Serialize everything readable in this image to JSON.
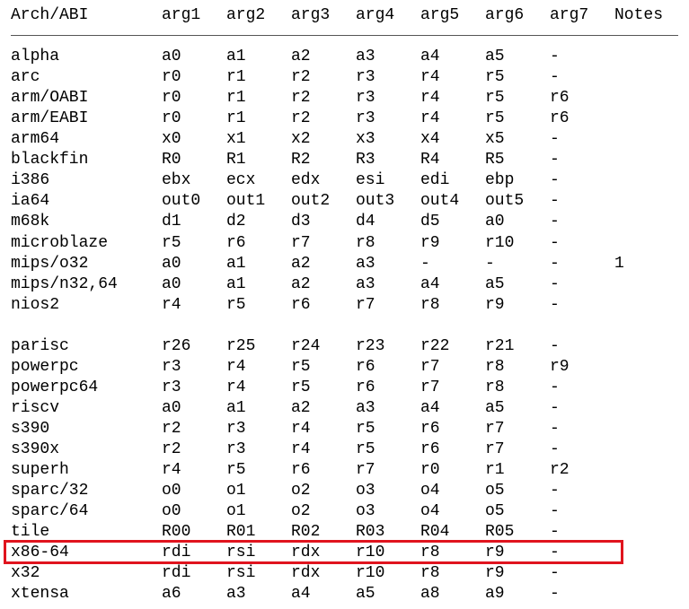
{
  "table": {
    "headers": [
      "Arch/ABI",
      "arg1",
      "arg2",
      "arg3",
      "arg4",
      "arg5",
      "arg6",
      "arg7",
      "Notes"
    ],
    "rows": [
      [
        "alpha",
        "a0",
        "a1",
        "a2",
        "a3",
        "a4",
        "a5",
        "-",
        ""
      ],
      [
        "arc",
        "r0",
        "r1",
        "r2",
        "r3",
        "r4",
        "r5",
        "-",
        ""
      ],
      [
        "arm/OABI",
        "r0",
        "r1",
        "r2",
        "r3",
        "r4",
        "r5",
        "r6",
        ""
      ],
      [
        "arm/EABI",
        "r0",
        "r1",
        "r2",
        "r3",
        "r4",
        "r5",
        "r6",
        ""
      ],
      [
        "arm64",
        "x0",
        "x1",
        "x2",
        "x3",
        "x4",
        "x5",
        "-",
        ""
      ],
      [
        "blackfin",
        "R0",
        "R1",
        "R2",
        "R3",
        "R4",
        "R5",
        "-",
        ""
      ],
      [
        "i386",
        "ebx",
        "ecx",
        "edx",
        "esi",
        "edi",
        "ebp",
        "-",
        ""
      ],
      [
        "ia64",
        "out0",
        "out1",
        "out2",
        "out3",
        "out4",
        "out5",
        "-",
        ""
      ],
      [
        "m68k",
        "d1",
        "d2",
        "d3",
        "d4",
        "d5",
        "a0",
        "-",
        ""
      ],
      [
        "microblaze",
        "r5",
        "r6",
        "r7",
        "r8",
        "r9",
        "r10",
        "-",
        ""
      ],
      [
        "mips/o32",
        "a0",
        "a1",
        "a2",
        "a3",
        "-",
        "-",
        "-",
        "1"
      ],
      [
        "mips/n32,64",
        "a0",
        "a1",
        "a2",
        "a3",
        "a4",
        "a5",
        "-",
        ""
      ],
      [
        "nios2",
        "r4",
        "r5",
        "r6",
        "r7",
        "r8",
        "r9",
        "-",
        ""
      ],
      [
        "",
        "",
        "",
        "",
        "",
        "",
        "",
        "",
        ""
      ],
      [
        "parisc",
        "r26",
        "r25",
        "r24",
        "r23",
        "r22",
        "r21",
        "-",
        ""
      ],
      [
        "powerpc",
        "r3",
        "r4",
        "r5",
        "r6",
        "r7",
        "r8",
        "r9",
        ""
      ],
      [
        "powerpc64",
        "r3",
        "r4",
        "r5",
        "r6",
        "r7",
        "r8",
        "-",
        ""
      ],
      [
        "riscv",
        "a0",
        "a1",
        "a2",
        "a3",
        "a4",
        "a5",
        "-",
        ""
      ],
      [
        "s390",
        "r2",
        "r3",
        "r4",
        "r5",
        "r6",
        "r7",
        "-",
        ""
      ],
      [
        "s390x",
        "r2",
        "r3",
        "r4",
        "r5",
        "r6",
        "r7",
        "-",
        ""
      ],
      [
        "superh",
        "r4",
        "r5",
        "r6",
        "r7",
        "r0",
        "r1",
        "r2",
        ""
      ],
      [
        "sparc/32",
        "o0",
        "o1",
        "o2",
        "o3",
        "o4",
        "o5",
        "-",
        ""
      ],
      [
        "sparc/64",
        "o0",
        "o1",
        "o2",
        "o3",
        "o4",
        "o5",
        "-",
        ""
      ],
      [
        "tile",
        "R00",
        "R01",
        "R02",
        "R03",
        "R04",
        "R05",
        "-",
        ""
      ],
      [
        "x86-64",
        "rdi",
        "rsi",
        "rdx",
        "r10",
        "r8",
        "r9",
        "-",
        ""
      ],
      [
        "x32",
        "rdi",
        "rsi",
        "rdx",
        "r10",
        "r8",
        "r9",
        "-",
        ""
      ],
      [
        "xtensa",
        "a6",
        "a3",
        "a4",
        "a5",
        "a8",
        "a9",
        "-",
        ""
      ]
    ],
    "highlighted_row": "x86-64",
    "highlight_color": "#e0141e"
  }
}
